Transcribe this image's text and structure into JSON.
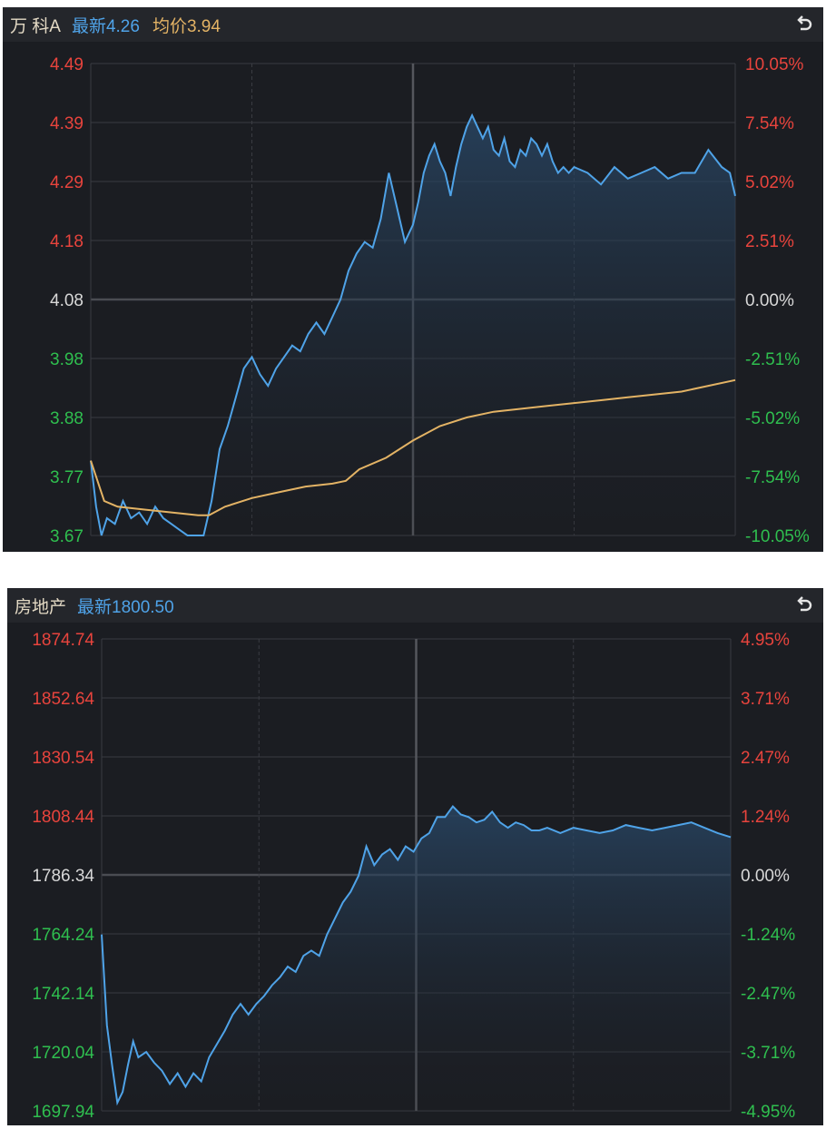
{
  "colors": {
    "up": "#e8443d",
    "down": "#2fbf4f",
    "flat": "#d8d8d8",
    "price_line": "#4fa3e8",
    "avg_line": "#e3b365",
    "grid": "#3a3c42",
    "background": "#1b1d22"
  },
  "panels": [
    {
      "header": {
        "name": "万 科A",
        "latest_label": "最新4.26",
        "avg_label": "均价3.94",
        "back_icon": "undo-icon"
      }
    },
    {
      "header": {
        "name": "房地产",
        "latest_label": "最新1800.50",
        "back_icon": "undo-icon"
      }
    }
  ],
  "chart_data": [
    {
      "type": "line",
      "title": "",
      "grid": true,
      "ylim": [
        3.67,
        4.49
      ],
      "baseline": 4.08,
      "y_ticks": [
        "4.49",
        "4.39",
        "4.29",
        "4.18",
        "4.08",
        "3.98",
        "3.88",
        "3.77",
        "3.67"
      ],
      "y_ticks_right": [
        "10.05%",
        "7.54%",
        "5.02%",
        "2.51%",
        "0.00%",
        "-2.51%",
        "-5.02%",
        "-7.54%",
        "-10.05%"
      ],
      "x_range": [
        0,
        240
      ],
      "series": [
        {
          "role": "price",
          "x": [
            0,
            2,
            4,
            6,
            9,
            12,
            15,
            18,
            21,
            24,
            27,
            30,
            33,
            36,
            39,
            42,
            45,
            48,
            51,
            54,
            57,
            60,
            63,
            66,
            69,
            72,
            75,
            78,
            81,
            84,
            87,
            90,
            93,
            96,
            99,
            102,
            105,
            108,
            111,
            114,
            117,
            120,
            122,
            124,
            126,
            128,
            130,
            132,
            134,
            136,
            138,
            140,
            142,
            144,
            146,
            148,
            150,
            152,
            154,
            156,
            158,
            160,
            162,
            164,
            166,
            168,
            170,
            172,
            174,
            176,
            178,
            180,
            185,
            190,
            195,
            200,
            205,
            210,
            215,
            220,
            225,
            230,
            235,
            238,
            240
          ],
          "values": [
            3.8,
            3.72,
            3.67,
            3.7,
            3.69,
            3.73,
            3.7,
            3.71,
            3.69,
            3.72,
            3.7,
            3.69,
            3.68,
            3.67,
            3.67,
            3.67,
            3.73,
            3.82,
            3.86,
            3.91,
            3.96,
            3.98,
            3.95,
            3.93,
            3.96,
            3.98,
            4.0,
            3.99,
            4.02,
            4.04,
            4.02,
            4.05,
            4.08,
            4.13,
            4.16,
            4.18,
            4.17,
            4.22,
            4.3,
            4.24,
            4.18,
            4.21,
            4.25,
            4.3,
            4.33,
            4.35,
            4.32,
            4.3,
            4.26,
            4.31,
            4.35,
            4.38,
            4.4,
            4.38,
            4.36,
            4.38,
            4.34,
            4.33,
            4.36,
            4.32,
            4.31,
            4.34,
            4.33,
            4.36,
            4.35,
            4.33,
            4.35,
            4.32,
            4.3,
            4.31,
            4.3,
            4.31,
            4.3,
            4.28,
            4.31,
            4.29,
            4.3,
            4.31,
            4.29,
            4.3,
            4.3,
            4.34,
            4.31,
            4.3,
            4.26
          ]
        },
        {
          "role": "avg",
          "x": [
            0,
            5,
            10,
            20,
            30,
            40,
            44,
            50,
            60,
            70,
            80,
            90,
            95,
            100,
            110,
            120,
            130,
            140,
            150,
            160,
            170,
            180,
            190,
            200,
            210,
            220,
            230,
            240
          ],
          "values": [
            3.8,
            3.73,
            3.72,
            3.715,
            3.71,
            3.705,
            3.705,
            3.72,
            3.735,
            3.745,
            3.755,
            3.76,
            3.765,
            3.785,
            3.805,
            3.835,
            3.86,
            3.875,
            3.885,
            3.89,
            3.895,
            3.9,
            3.905,
            3.91,
            3.915,
            3.92,
            3.93,
            3.94
          ]
        }
      ]
    },
    {
      "type": "line",
      "title": "",
      "grid": true,
      "ylim": [
        1697.94,
        1874.74
      ],
      "baseline": 1786.34,
      "y_ticks": [
        "1874.74",
        "1852.64",
        "1830.54",
        "1808.44",
        "1786.34",
        "1764.24",
        "1742.14",
        "1720.04",
        "1697.94"
      ],
      "y_ticks_right": [
        "4.95%",
        "3.71%",
        "2.47%",
        "1.24%",
        "0.00%",
        "-1.24%",
        "-2.47%",
        "-3.71%",
        "-4.95%"
      ],
      "x_range": [
        0,
        240
      ],
      "series": [
        {
          "role": "price",
          "x": [
            0,
            2,
            4,
            6,
            8,
            10,
            12,
            14,
            17,
            20,
            23,
            26,
            29,
            32,
            35,
            38,
            41,
            44,
            47,
            50,
            53,
            56,
            59,
            62,
            65,
            68,
            71,
            74,
            77,
            80,
            83,
            86,
            89,
            92,
            95,
            98,
            101,
            104,
            107,
            110,
            113,
            116,
            119,
            122,
            125,
            128,
            131,
            134,
            137,
            140,
            143,
            146,
            149,
            152,
            155,
            158,
            161,
            164,
            167,
            170,
            175,
            180,
            185,
            190,
            195,
            200,
            205,
            210,
            215,
            220,
            225,
            230,
            235,
            240
          ],
          "values": [
            1764,
            1730,
            1715,
            1701,
            1705,
            1715,
            1724,
            1718,
            1720,
            1716,
            1713,
            1708,
            1712,
            1707,
            1712,
            1709,
            1718,
            1723,
            1728,
            1734,
            1738,
            1734,
            1738,
            1741,
            1745,
            1748,
            1752,
            1750,
            1756,
            1758,
            1756,
            1764,
            1770,
            1776,
            1780,
            1786,
            1797,
            1790,
            1794,
            1796,
            1792,
            1797,
            1795,
            1800,
            1802,
            1808,
            1808,
            1812,
            1809,
            1808,
            1806,
            1807,
            1810,
            1806,
            1804,
            1806,
            1805,
            1803,
            1803,
            1804,
            1802,
            1804,
            1803,
            1802,
            1803,
            1805,
            1804,
            1803,
            1804,
            1805,
            1806,
            1804,
            1802,
            1800.5
          ]
        }
      ]
    }
  ]
}
